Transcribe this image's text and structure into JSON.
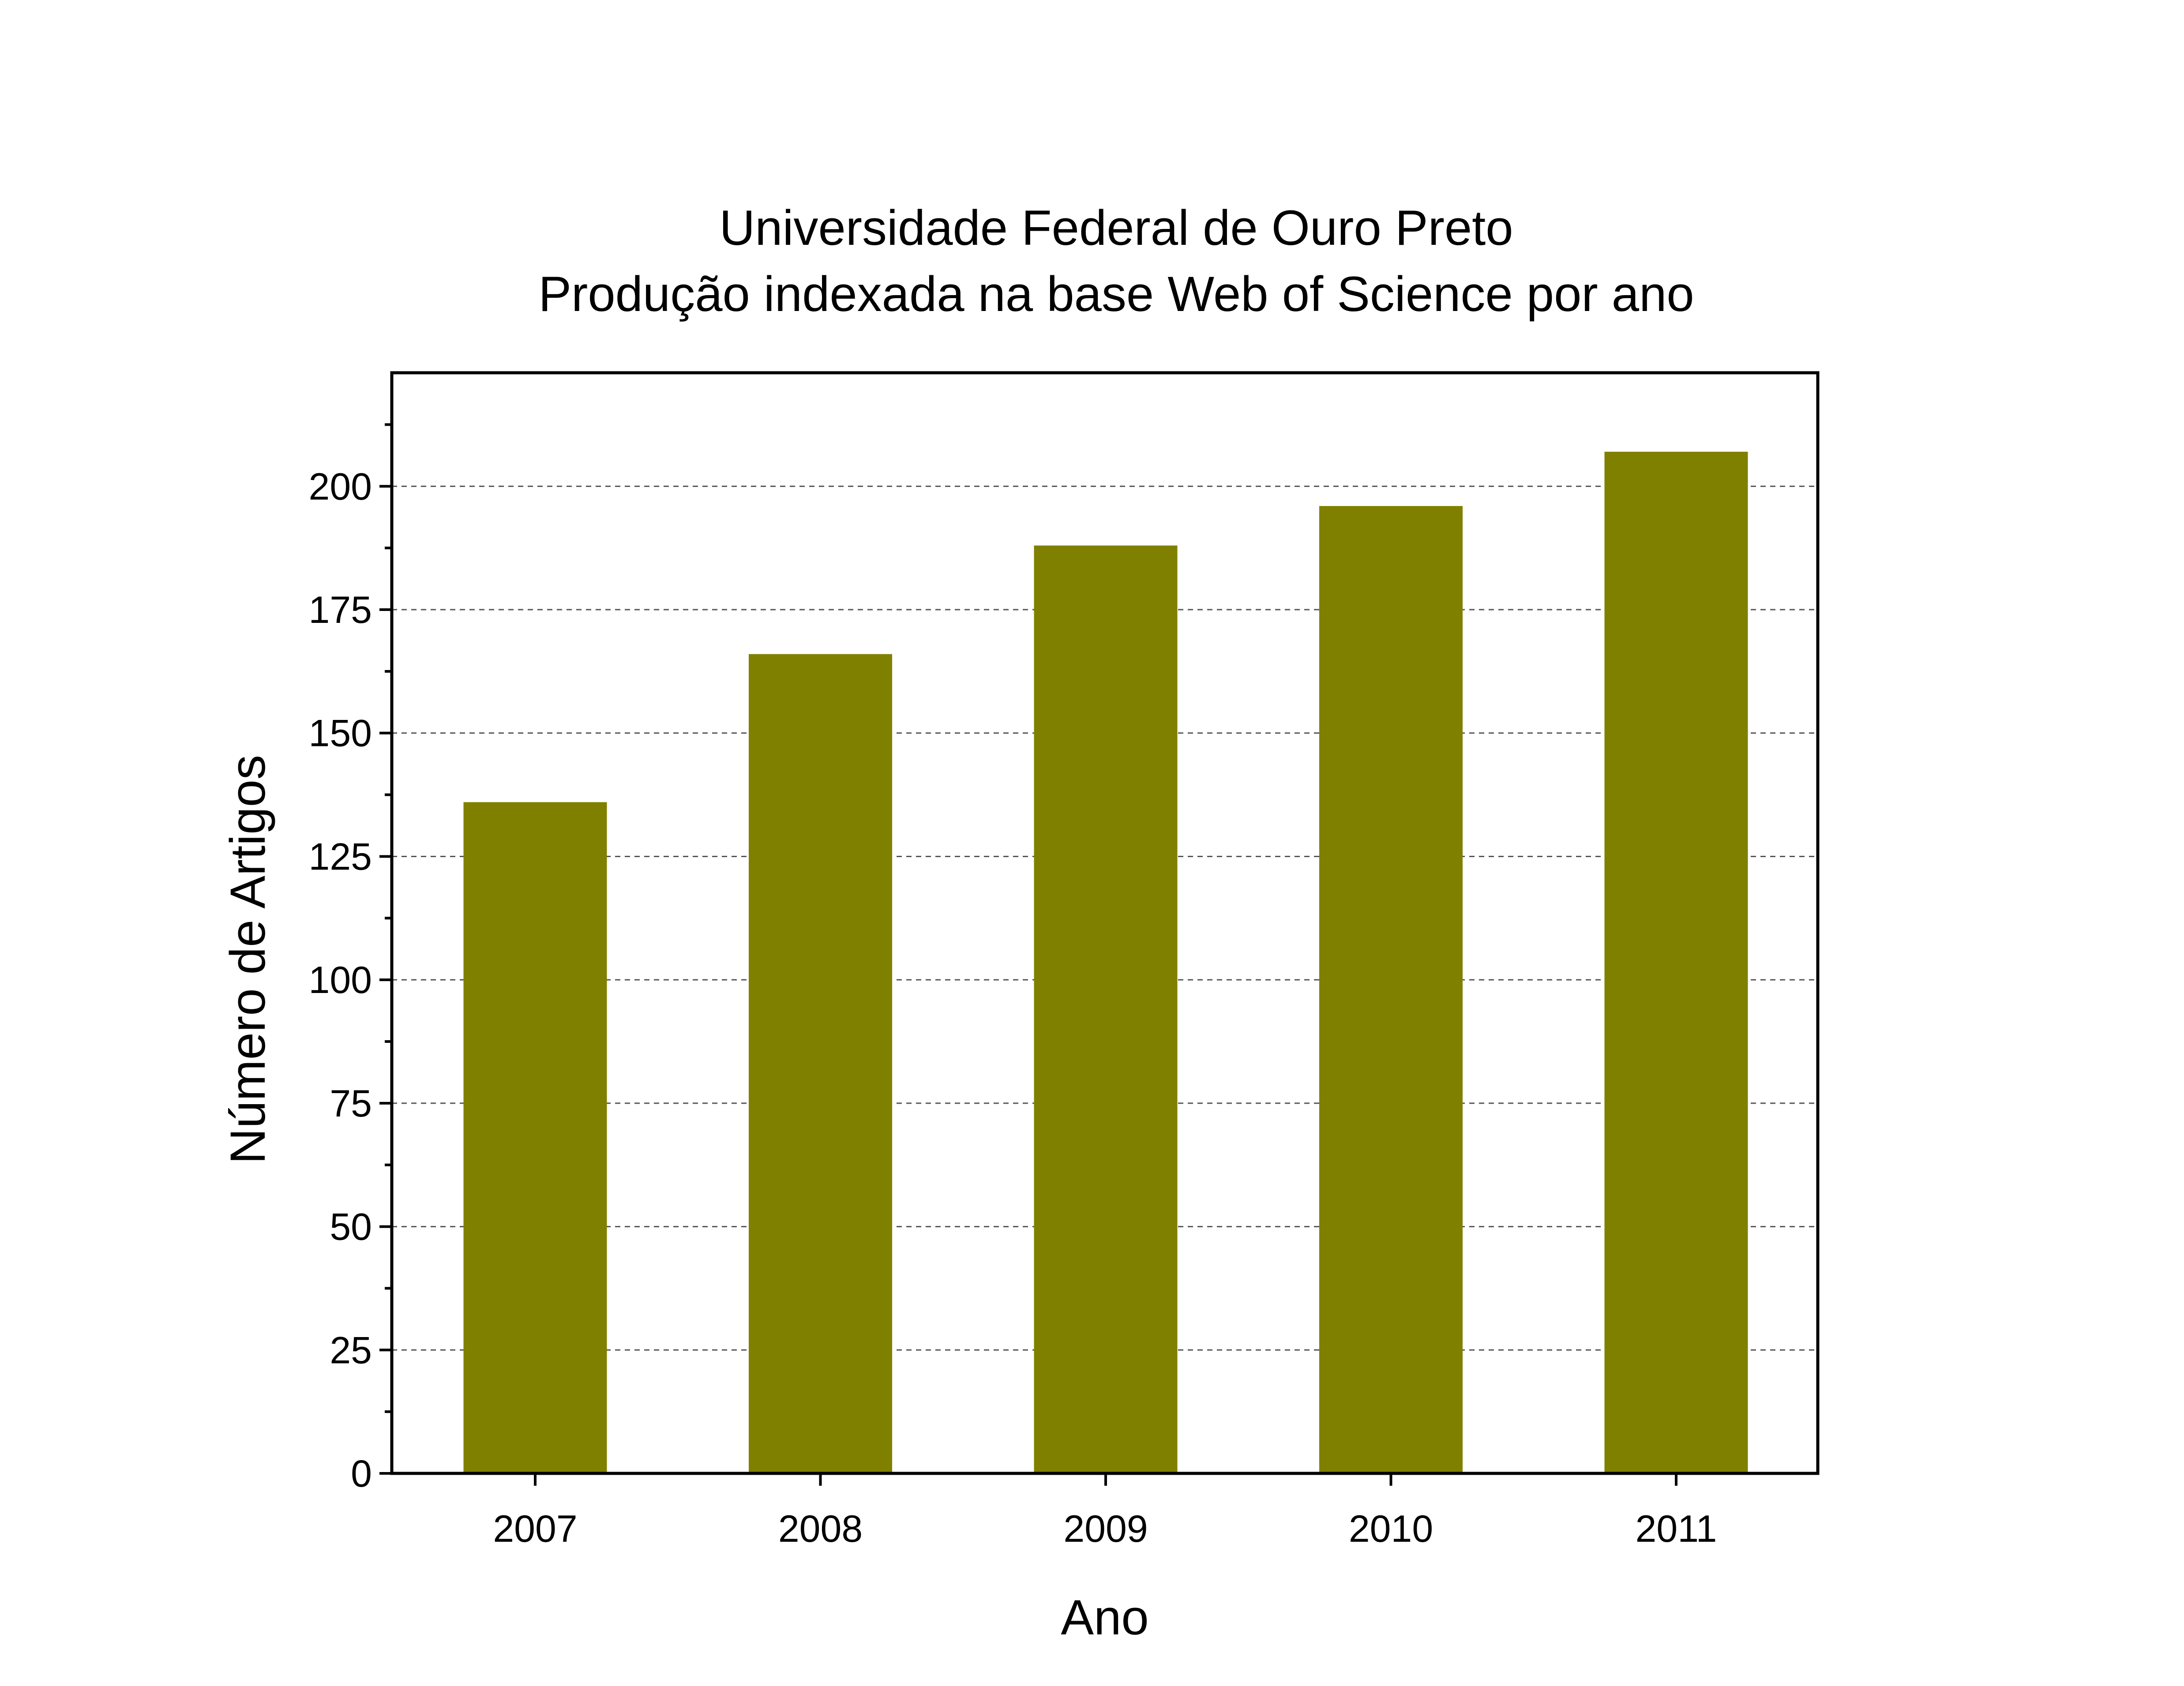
{
  "chart_data": {
    "type": "bar",
    "title": "Universidade Federal de Ouro Preto",
    "subtitle": "Produção indexada na base Web of Science por ano",
    "xlabel": "Ano",
    "ylabel": "Número de Artigos",
    "categories": [
      "2007",
      "2008",
      "2009",
      "2010",
      "2011"
    ],
    "values": [
      136,
      166,
      188,
      196,
      207
    ],
    "ylim": [
      0,
      223
    ],
    "yticks": [
      0,
      25,
      50,
      75,
      100,
      125,
      150,
      175,
      200
    ],
    "grid": "horizontal dashed",
    "bar_color": "#808000"
  }
}
